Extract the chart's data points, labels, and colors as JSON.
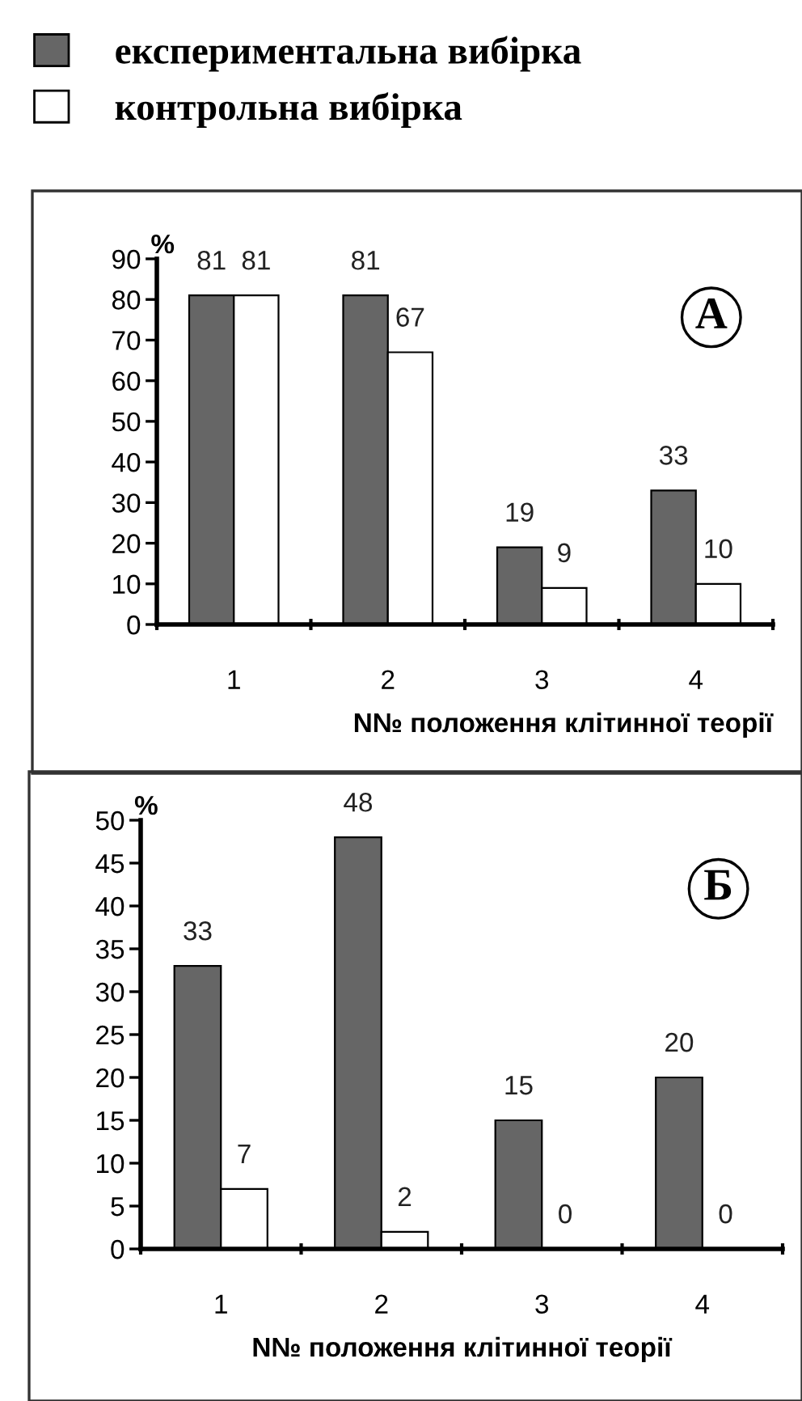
{
  "chart_data": [
    {
      "type": "bar",
      "categories": [
        "1",
        "2",
        "3",
        "4"
      ],
      "xlabel": "N№ положення клітинної теорії",
      "ylabel": "%",
      "series": [
        {
          "name": "експериментальна вибірка",
          "color": "#666666",
          "values": [
            81,
            81,
            19,
            33
          ]
        },
        {
          "name": "контрольна вибірка",
          "color": "#ffffff",
          "values": [
            81,
            67,
            9,
            10
          ]
        }
      ],
      "ylim": [
        0,
        90
      ],
      "yticks": [
        0,
        10,
        20,
        30,
        40,
        50,
        60,
        70,
        80,
        90
      ],
      "data_labels": true,
      "grid": false,
      "legend": "top",
      "annotations": [
        "А"
      ]
    },
    {
      "type": "bar",
      "categories": [
        "1",
        "2",
        "3",
        "4"
      ],
      "xlabel": "N№ положення клітинної теорії",
      "ylabel": "%",
      "series": [
        {
          "color": "#666666",
          "values": [
            33,
            48,
            15,
            20
          ]
        },
        {
          "color": "#ffffff",
          "values": [
            7,
            2,
            0,
            0
          ]
        }
      ],
      "ylim": [
        0,
        50
      ],
      "yticks": [
        0,
        5,
        10,
        15,
        20,
        25,
        30,
        35,
        40,
        45,
        50
      ],
      "data_labels": true,
      "grid": false,
      "annotations": [
        "Б"
      ]
    }
  ]
}
